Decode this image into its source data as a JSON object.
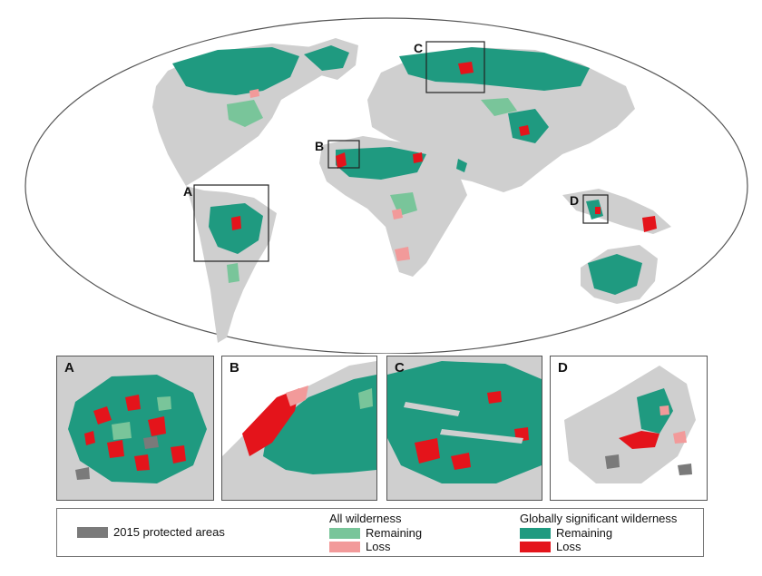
{
  "map": {
    "callouts": [
      {
        "id": "A",
        "label": "A"
      },
      {
        "id": "B",
        "label": "B"
      },
      {
        "id": "C",
        "label": "C"
      },
      {
        "id": "D",
        "label": "D"
      }
    ]
  },
  "panels": [
    {
      "id": "A",
      "label": "A"
    },
    {
      "id": "B",
      "label": "B"
    },
    {
      "id": "C",
      "label": "C"
    },
    {
      "id": "D",
      "label": "D"
    }
  ],
  "legend": {
    "protected_label": "2015 protected areas",
    "all_wilderness_heading": "All wilderness",
    "all_remaining_label": "Remaining",
    "all_loss_label": "Loss",
    "global_heading": "Globally significant wilderness",
    "global_remaining_label": "Remaining",
    "global_loss_label": "Loss"
  },
  "colors": {
    "land": "#cfcfcf",
    "protected": "#7a7a7a",
    "all_remaining": "#79c59a",
    "all_loss": "#f29a9a",
    "global_remaining": "#1f9a80",
    "global_loss": "#e4141b"
  }
}
